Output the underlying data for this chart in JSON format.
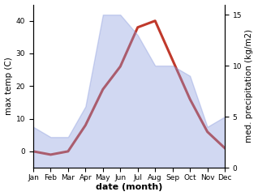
{
  "months": [
    "Jan",
    "Feb",
    "Mar",
    "Apr",
    "May",
    "Jun",
    "Jul",
    "Aug",
    "Sep",
    "Oct",
    "Nov",
    "Dec"
  ],
  "x": [
    1,
    2,
    3,
    4,
    5,
    6,
    7,
    8,
    9,
    10,
    11,
    12
  ],
  "temp_max": [
    0,
    -1,
    0,
    8,
    19,
    26,
    38,
    40,
    28,
    16,
    6,
    1
  ],
  "precip": [
    4,
    3,
    3,
    6,
    15,
    15,
    13,
    10,
    10,
    9,
    4,
    5
  ],
  "temp_color": "#c0392b",
  "precip_color": "#8899dd",
  "precip_fill_alpha": 0.38,
  "xlabel": "date (month)",
  "ylabel_left": "max temp (C)",
  "ylabel_right": "med. precipitation (kg/m2)",
  "ylim_left": [
    -5,
    45
  ],
  "ylim_right": [
    0,
    16
  ],
  "yticks_left": [
    0,
    10,
    20,
    30,
    40
  ],
  "yticks_right": [
    0,
    5,
    10,
    15
  ],
  "tick_fontsize": 6.5,
  "xlabel_fontsize": 8,
  "ylabel_fontsize": 7.5,
  "background_color": "#ffffff",
  "linewidth": 2.2
}
